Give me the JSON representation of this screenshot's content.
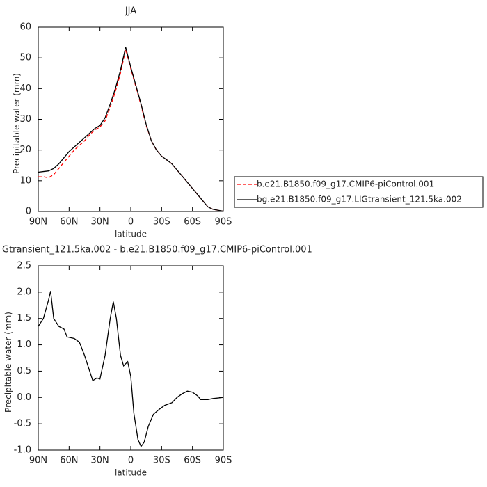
{
  "chart_data": [
    {
      "type": "line",
      "title": "JJA",
      "xlabel": "latitude",
      "ylabel": "Precipitable water (mm)",
      "x": [
        90,
        85,
        80,
        75,
        70,
        65,
        60,
        55,
        50,
        45,
        40,
        35,
        30,
        25,
        20,
        15,
        10,
        5,
        0,
        -5,
        -10,
        -15,
        -20,
        -25,
        -30,
        -35,
        -40,
        -45,
        -50,
        -55,
        -60,
        -65,
        -70,
        -75,
        -80,
        -85,
        -90
      ],
      "series": [
        {
          "name": "b.e21.B1850.f09_g17.CMIP6-piControl.001",
          "color": "#ff0000",
          "dashed": true,
          "values": [
            11.3,
            11.3,
            11,
            12,
            14,
            16,
            18,
            20,
            21.5,
            23,
            25,
            26.5,
            27.5,
            29.5,
            34,
            39,
            45,
            52.8,
            46.5,
            40.5,
            34.5,
            28,
            23,
            20,
            18,
            16.8,
            15.5,
            13.5,
            11.5,
            9.5,
            7.5,
            5.5,
            3.5,
            1.5,
            0.7,
            0.4,
            0.1
          ]
        },
        {
          "name": "bg.e21.B1850.f09_g17.LIGtransient_121.5ka.002",
          "color": "#000000",
          "dashed": false,
          "values": [
            12.8,
            13,
            13.2,
            14,
            15.5,
            17.5,
            19.5,
            21,
            22.5,
            24,
            25.5,
            27,
            28,
            30.5,
            35,
            40,
            46,
            53.5,
            47,
            41,
            35,
            28.3,
            23,
            20,
            18,
            16.8,
            15.5,
            13.5,
            11.5,
            9.5,
            7.5,
            5.5,
            3.5,
            1.5,
            0.7,
            0.4,
            0.1
          ]
        }
      ],
      "xlim": [
        90,
        -90
      ],
      "xticks": [
        {
          "value": 90,
          "label": "90N"
        },
        {
          "value": 60,
          "label": "60N"
        },
        {
          "value": 30,
          "label": "30N"
        },
        0,
        {
          "value": -30,
          "label": "30S"
        },
        {
          "value": -60,
          "label": "60S"
        },
        {
          "value": -90,
          "label": "90S"
        }
      ],
      "ylim": [
        0,
        60
      ],
      "yticks": [
        0,
        10,
        20,
        30,
        40,
        50,
        60
      ],
      "legend": "right"
    },
    {
      "type": "line",
      "title": "Gtransient_121.5ka.002 - b.e21.B1850.f09_g17.CMIP6-piControl.001",
      "xlabel": "latitude",
      "ylabel": "Precipitable water (mm)",
      "x": [
        90,
        85,
        80,
        78,
        75,
        70,
        65,
        62,
        55,
        50,
        45,
        40,
        37,
        33,
        30,
        25,
        20,
        17,
        14,
        10,
        7,
        3,
        0,
        -3,
        -7,
        -10,
        -13,
        -17,
        -22,
        -28,
        -33,
        -40,
        -45,
        -50,
        -55,
        -60,
        -65,
        -68,
        -75,
        -80,
        -90
      ],
      "values": [
        1.35,
        1.5,
        1.85,
        2.02,
        1.5,
        1.35,
        1.3,
        1.15,
        1.12,
        1.05,
        0.8,
        0.5,
        0.32,
        0.37,
        0.35,
        0.8,
        1.5,
        1.82,
        1.5,
        0.8,
        0.6,
        0.68,
        0.4,
        -0.3,
        -0.8,
        -0.93,
        -0.85,
        -0.55,
        -0.32,
        -0.22,
        -0.15,
        -0.1,
        0,
        0.07,
        0.12,
        0.1,
        0.03,
        -0.04,
        -0.04,
        -0.02,
        0
      ],
      "color": "#000000",
      "xlim": [
        90,
        -90
      ],
      "xticks": [
        {
          "value": 90,
          "label": "90N"
        },
        {
          "value": 60,
          "label": "60N"
        },
        {
          "value": 30,
          "label": "30N"
        },
        0,
        {
          "value": -30,
          "label": "30S"
        },
        {
          "value": -60,
          "label": "60S"
        },
        {
          "value": -90,
          "label": "90S"
        }
      ],
      "ylim": [
        -1,
        2.5
      ],
      "yticks": [
        {
          "value": -1,
          "label": "-1.0"
        },
        -0.5,
        {
          "value": 0,
          "label": "0.0"
        },
        0.5,
        {
          "value": 1,
          "label": "1.0"
        },
        1.5,
        {
          "value": 2,
          "label": "2.0"
        },
        2.5
      ]
    }
  ]
}
